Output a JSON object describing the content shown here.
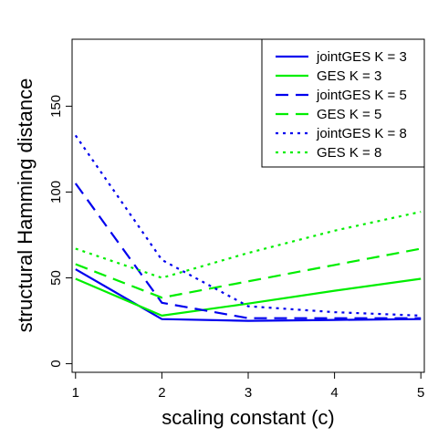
{
  "chart_data": {
    "type": "line",
    "title": "",
    "xlabel": "scaling constant (c)",
    "ylabel": "structural Hamming distance",
    "x": [
      1,
      2,
      3,
      4,
      5
    ],
    "x_ticks": [
      "1",
      "2",
      "3",
      "4",
      "5"
    ],
    "y_ticks": [
      "0",
      "50",
      "100",
      "150"
    ],
    "xlim": [
      0.96,
      5.04
    ],
    "ylim": [
      -5,
      189
    ],
    "grid": false,
    "legend_position": "top-right",
    "series": [
      {
        "name": "jointGES K = 3",
        "color": "#0000ee",
        "dash": "solid",
        "values": [
          55,
          26,
          25,
          25.5,
          26
        ]
      },
      {
        "name": "GES K = 3",
        "color": "#00ee00",
        "dash": "solid",
        "values": [
          49.5,
          28,
          35,
          42.5,
          49.5
        ]
      },
      {
        "name": "jointGES K = 5",
        "color": "#0000ee",
        "dash": "dashed",
        "values": [
          105,
          35.5,
          26.5,
          26.5,
          26.5
        ]
      },
      {
        "name": "GES K = 5",
        "color": "#00ee00",
        "dash": "dashed",
        "values": [
          58,
          38.5,
          48,
          57.5,
          67
        ]
      },
      {
        "name": "jointGES K = 8",
        "color": "#0000ee",
        "dash": "dotted",
        "values": [
          133,
          60.5,
          33.5,
          30,
          28
        ]
      },
      {
        "name": "GES K = 8",
        "color": "#00ee00",
        "dash": "dotted",
        "values": [
          67,
          50,
          64.5,
          77.5,
          88.5
        ]
      }
    ]
  }
}
